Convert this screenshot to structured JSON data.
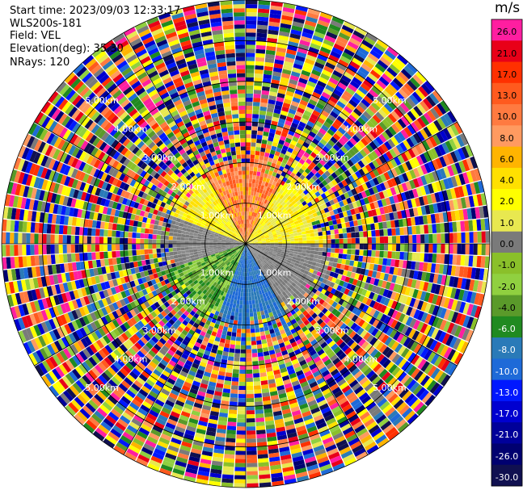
{
  "header": {
    "start_time": "Start time: 2023/09/03 12:33:17",
    "instrument": "WLS200s-181",
    "field": "Field: VEL",
    "elevation": "Elevation(deg): 35.30",
    "nrays": "NRays: 120"
  },
  "chart_data": {
    "type": "heatmap",
    "projection": "polar-ppi",
    "field": "VEL",
    "units": "m/s",
    "n_rays": 120,
    "max_range_km": 6.0,
    "range_ring_labels": [
      "1.00km",
      "2.00km",
      "3.00km",
      "4.00km",
      "5.00km"
    ],
    "colorbar": {
      "unit_label": "m/s",
      "range": [
        -30,
        30
      ],
      "ticks": [
        {
          "label": "26.0",
          "color": "#ff1ea0"
        },
        {
          "label": "21.0",
          "color": "#e80018"
        },
        {
          "label": "17.0",
          "color": "#ff3000"
        },
        {
          "label": "13.0",
          "color": "#ff5a1e"
        },
        {
          "label": "10.0",
          "color": "#ff7a40"
        },
        {
          "label": "8.0",
          "color": "#ff9a60"
        },
        {
          "label": "6.0",
          "color": "#ffb400"
        },
        {
          "label": "4.0",
          "color": "#ffe000"
        },
        {
          "label": "2.0",
          "color": "#ffff00"
        },
        {
          "label": "1.0",
          "color": "#e8e850"
        },
        {
          "label": "0.0",
          "color": "#7a7a7a"
        },
        {
          "label": "-1.0",
          "color": "#8ac02a"
        },
        {
          "label": "-2.0",
          "color": "#90d040"
        },
        {
          "label": "-4.0",
          "color": "#5a9a2a"
        },
        {
          "label": "-6.0",
          "color": "#208a20"
        },
        {
          "label": "-8.0",
          "color": "#2a7ab8"
        },
        {
          "label": "-10.0",
          "color": "#1e6ad8"
        },
        {
          "label": "-13.0",
          "color": "#0018ff"
        },
        {
          "label": "-17.0",
          "color": "#0000d0"
        },
        {
          "label": "-21.0",
          "color": "#00009a"
        },
        {
          "label": "-26.0",
          "color": "#000070"
        },
        {
          "label": "-30.0",
          "color": "#101050"
        }
      ]
    }
  }
}
